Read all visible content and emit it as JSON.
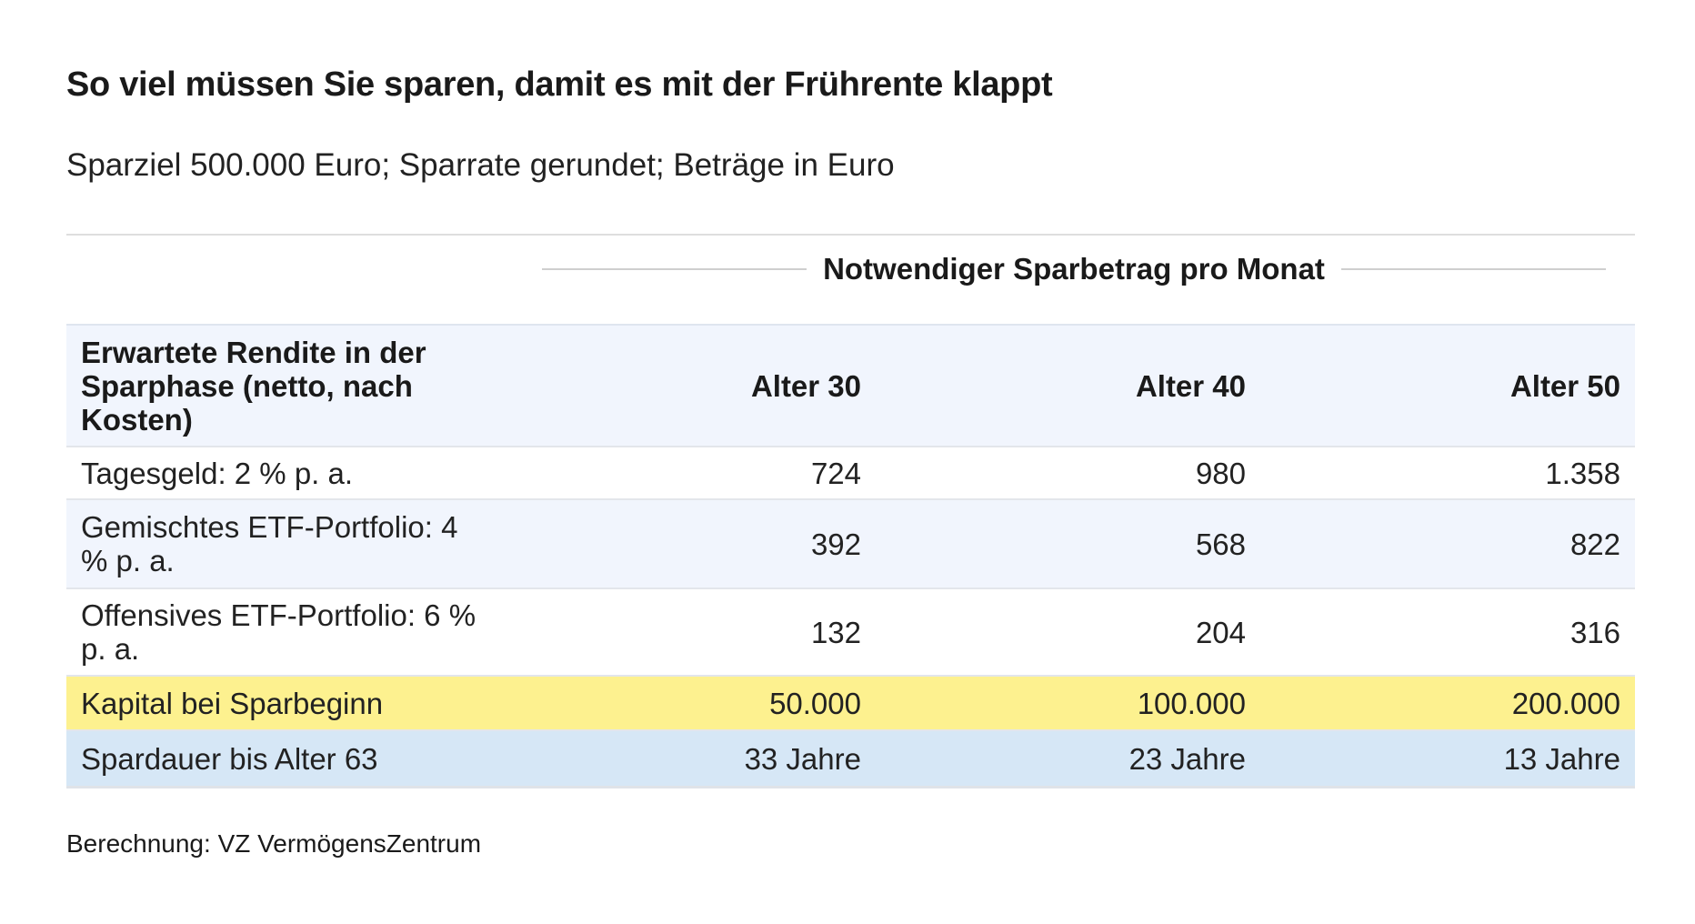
{
  "title": "So viel müssen Sie sparen, damit es mit der Frührente klappt",
  "subtitle": "Sparziel 500.000 Euro; Sparrate gerundet; Beträge in Euro",
  "group_header": "Notwendiger Sparbetrag pro Monat",
  "table": {
    "columns": [
      "Erwartete Rendite in der Sparphase (netto, nach Kosten)",
      "Alter 30",
      "Alter 40",
      "Alter 50"
    ],
    "rows": [
      [
        "Tagesgeld: 2 % p. a.",
        "724",
        "980",
        "1.358"
      ],
      [
        "Gemischtes ETF-Portfolio: 4 % p. a.",
        "392",
        "568",
        "822"
      ],
      [
        "Offensives ETF-Portfolio: 6 % p. a.",
        "132",
        "204",
        "316"
      ],
      [
        "Kapital bei Sparbeginn",
        "50.000",
        "100.000",
        "200.000"
      ],
      [
        "Spardauer bis Alter 63",
        "33 Jahre",
        "23 Jahre",
        "13 Jahre"
      ]
    ]
  },
  "colors": {
    "header_row_bg": "#f1f5fd",
    "highlight_capital_bg": "#fdf18f",
    "highlight_duration_bg": "#d6e7f6"
  },
  "source": "Berechnung: VZ VermögensZentrum"
}
